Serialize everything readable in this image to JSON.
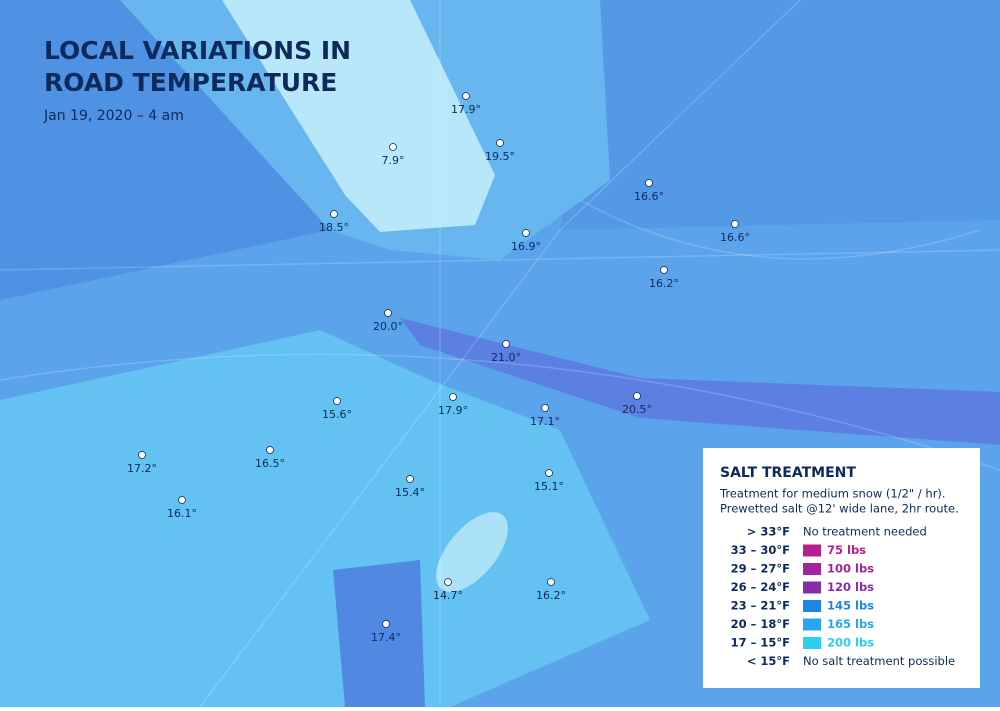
{
  "header": {
    "title_lines": [
      "LOCAL VARIATIONS IN",
      "ROAD TEMPERATURE"
    ],
    "date": "Jan 19, 2020 – 4 am"
  },
  "stations": [
    {
      "label": "7.9°"
    },
    {
      "label": "17.9°"
    },
    {
      "label": "19.5°"
    },
    {
      "label": "16.6°"
    },
    {
      "label": "18.5°"
    },
    {
      "label": "16.9°"
    },
    {
      "label": "16.6°"
    },
    {
      "label": "16.2°"
    },
    {
      "label": "20.0°"
    },
    {
      "label": "21.0°"
    },
    {
      "label": "15.6°"
    },
    {
      "label": "17.9°"
    },
    {
      "label": "17.1°"
    },
    {
      "label": "20.5°"
    },
    {
      "label": "17.2°"
    },
    {
      "label": "16.5°"
    },
    {
      "label": "16.1°"
    },
    {
      "label": "15.4°"
    },
    {
      "label": "15.1°"
    },
    {
      "label": "14.7°"
    },
    {
      "label": "16.2°"
    },
    {
      "label": "17.4°"
    }
  ],
  "legend": {
    "title": "SALT TREATMENT",
    "description": [
      "Treatment for medium snow (1/2\" / hr).",
      "Prewetted salt @12' wide lane, 2hr route."
    ],
    "rows": [
      {
        "range": "> 33°F",
        "treatment": "No treatment needed"
      },
      {
        "range": "33 – 30°F",
        "treatment": "75 lbs",
        "color": "#b5208c"
      },
      {
        "range": "29 – 27°F",
        "treatment": "100 lbs",
        "color": "#a1259c"
      },
      {
        "range": "26 – 24°F",
        "treatment": "120 lbs",
        "color": "#8a2ca9"
      },
      {
        "range": "23 – 21°F",
        "treatment": "145 lbs",
        "color": "#1f86e6"
      },
      {
        "range": "20 – 18°F",
        "treatment": "165 lbs",
        "color": "#27a6ef"
      },
      {
        "range": "17 – 15°F",
        "treatment": "200 lbs",
        "color": "#2ccfee"
      },
      {
        "range": "< 15°F",
        "treatment": "No salt treatment possible"
      }
    ]
  }
}
